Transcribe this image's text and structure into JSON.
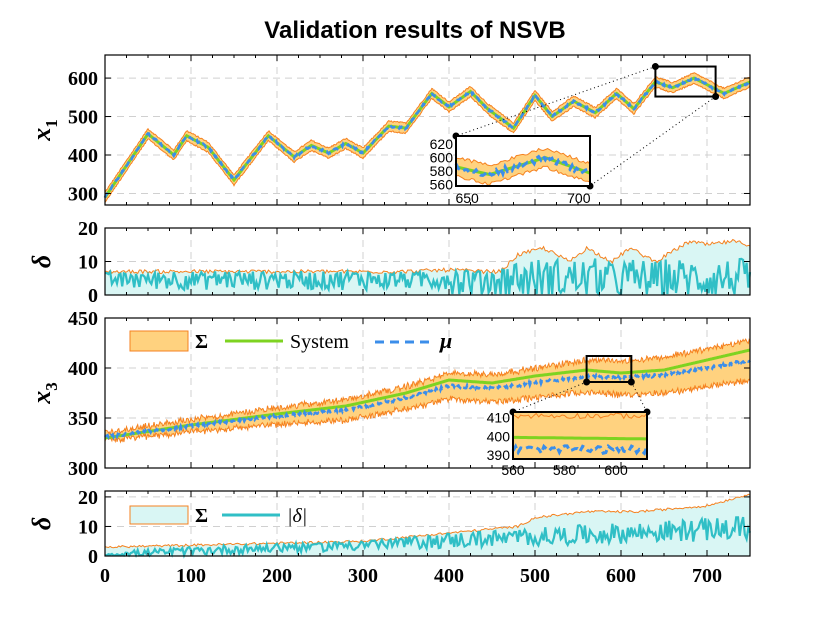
{
  "title": "Validation results of NSVB",
  "colors": {
    "band": "#FFD27F",
    "band_edge": "#F58220",
    "system": "#7ED321",
    "mu": "#3B8EEA",
    "delta": "#30BFC6",
    "delta_fill": "#D9F6F4",
    "grid": "#d0d0d0"
  },
  "chart_data": [
    {
      "id": "x1",
      "type": "line",
      "ylabel_main": "x",
      "ylabel_sub": "1",
      "xlim": [
        0,
        750
      ],
      "ylim": [
        270,
        660
      ],
      "yticks": [
        "300",
        "400",
        "500",
        "600"
      ],
      "ytick_values": [
        300,
        400,
        500,
        600
      ],
      "x_keypoints": [
        0,
        50,
        80,
        95,
        120,
        150,
        190,
        220,
        240,
        260,
        280,
        300,
        330,
        350,
        380,
        400,
        425,
        445,
        475,
        500,
        520,
        545,
        570,
        595,
        615,
        640,
        660,
        685,
        720,
        750
      ],
      "system_keypoints": [
        290,
        455,
        400,
        450,
        420,
        335,
        450,
        395,
        425,
        405,
        430,
        405,
        475,
        470,
        560,
        525,
        565,
        520,
        470,
        555,
        500,
        540,
        510,
        560,
        520,
        590,
        575,
        600,
        560,
        590
      ],
      "band_halfwidth": 13,
      "inset": {
        "xlim": [
          645,
          705
        ],
        "ylim": [
          558,
          632
        ],
        "xticks": [
          "650",
          "700"
        ],
        "xtick_values": [
          650,
          700
        ],
        "yticks": [
          "560",
          "580",
          "600",
          "620"
        ],
        "ytick_values": [
          560,
          580,
          600,
          620
        ]
      }
    },
    {
      "id": "delta1",
      "type": "area",
      "ylabel": "δ",
      "xlim": [
        0,
        750
      ],
      "ylim": [
        0,
        20
      ],
      "yticks": [
        "0",
        "10",
        "20"
      ],
      "ytick_values": [
        0,
        10,
        20
      ],
      "sigma_keypoints": [
        7,
        7,
        7,
        7,
        7,
        7.5,
        7,
        7,
        12,
        14,
        10,
        14,
        10,
        14,
        10,
        16,
        15,
        16,
        15
      ],
      "sigma_x": [
        0,
        100,
        200,
        300,
        350,
        400,
        440,
        460,
        480,
        510,
        540,
        560,
        590,
        610,
        640,
        680,
        700,
        730,
        750
      ],
      "delta_mean": 5
    },
    {
      "id": "x3",
      "type": "line",
      "ylabel_main": "x",
      "ylabel_sub": "3",
      "xlim": [
        0,
        750
      ],
      "ylim": [
        300,
        450
      ],
      "yticks": [
        "300",
        "350",
        "400",
        "450"
      ],
      "ytick_values": [
        300,
        350,
        400,
        450
      ],
      "legend": {
        "band": "Σ",
        "system": "System",
        "mu": "μ"
      },
      "x_keypoints": [
        0,
        100,
        200,
        280,
        350,
        400,
        450,
        500,
        560,
        600,
        650,
        700,
        750
      ],
      "system_keypoints": [
        330,
        343,
        354,
        362,
        375,
        388,
        385,
        392,
        398,
        395,
        398,
        408,
        418
      ],
      "mu_keypoints": [
        331,
        342,
        352,
        358,
        370,
        382,
        380,
        385,
        392,
        390,
        393,
        400,
        408
      ],
      "band_halfwidth_start": 4,
      "band_halfwidth_end": 20,
      "inset": {
        "xlim": [
          560,
          612
        ],
        "ylim": [
          388,
          413
        ],
        "xticks": [
          "560",
          "580",
          "600"
        ],
        "xtick_values": [
          560,
          580,
          600
        ],
        "yticks": [
          "390",
          "400",
          "410"
        ],
        "ytick_values": [
          390,
          400,
          410
        ]
      }
    },
    {
      "id": "delta3",
      "type": "area",
      "ylabel": "δ",
      "xlim": [
        0,
        750
      ],
      "ylim": [
        0,
        22
      ],
      "yticks": [
        "0",
        "10",
        "20"
      ],
      "ytick_values": [
        0,
        10,
        20
      ],
      "legend": {
        "sigma": "Σ",
        "delta": "|δ|"
      },
      "xticks": [
        "0",
        "100",
        "200",
        "300",
        "400",
        "500",
        "600",
        "700"
      ],
      "xtick_values": [
        0,
        100,
        200,
        300,
        400,
        500,
        600,
        700
      ],
      "sigma_x": [
        0,
        300,
        480,
        500,
        560,
        620,
        700,
        750
      ],
      "sigma_keypoints": [
        3,
        5,
        10,
        13,
        15,
        15,
        17,
        21
      ]
    }
  ]
}
